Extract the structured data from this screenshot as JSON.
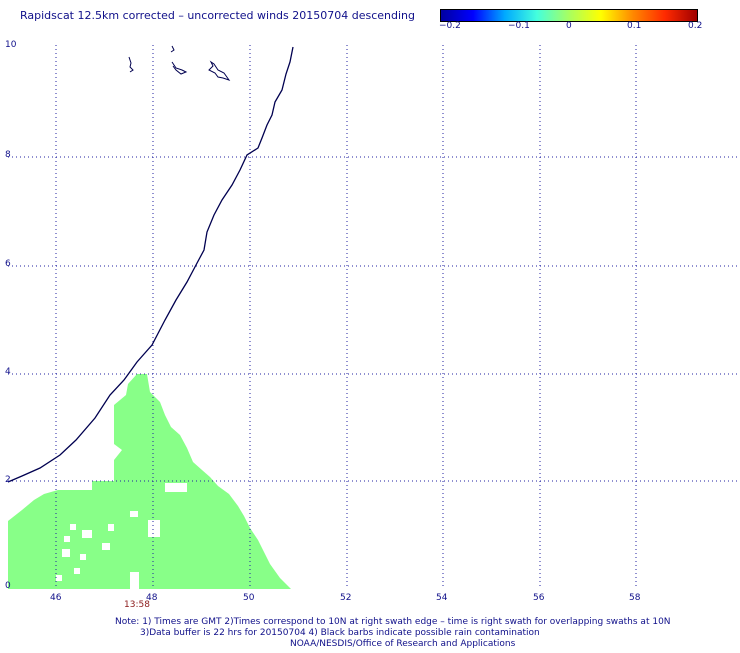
{
  "title": "Rapidscat 12.5km corrected – uncorrected winds 20150704 descending",
  "colorbar": {
    "ticks": [
      "−0.2",
      "−0.1",
      "0",
      "0.1",
      "0.2"
    ],
    "stops": [
      "#0000a0",
      "#0000ff",
      "#00aaff",
      "#44ffdd",
      "#a8ff60",
      "#ffff00",
      "#ff8800",
      "#ff2a00",
      "#a00000"
    ]
  },
  "axes": {
    "x_ticks": [
      "46",
      "48",
      "50",
      "52",
      "54",
      "56",
      "58"
    ],
    "y_ticks": [
      "0",
      "2",
      "4",
      "6",
      "8",
      "10"
    ]
  },
  "swath_time": "13:58",
  "colors": {
    "text": "#10108a",
    "coast": "#000050",
    "swath": "#88ff88",
    "grid": "#2020a0",
    "time": "#8b1a1a"
  },
  "notes": [
    "Note: 1) Times are GMT 2)Times correspond to 10N at right swath edge – time is right swath for overlapping swaths at 10N",
    "3)Data buffer is 22 hrs for 20150704 4) Black barbs indicate possible rain contamination",
    "NOAA/NESDIS/Office of Research and Applications"
  ]
}
